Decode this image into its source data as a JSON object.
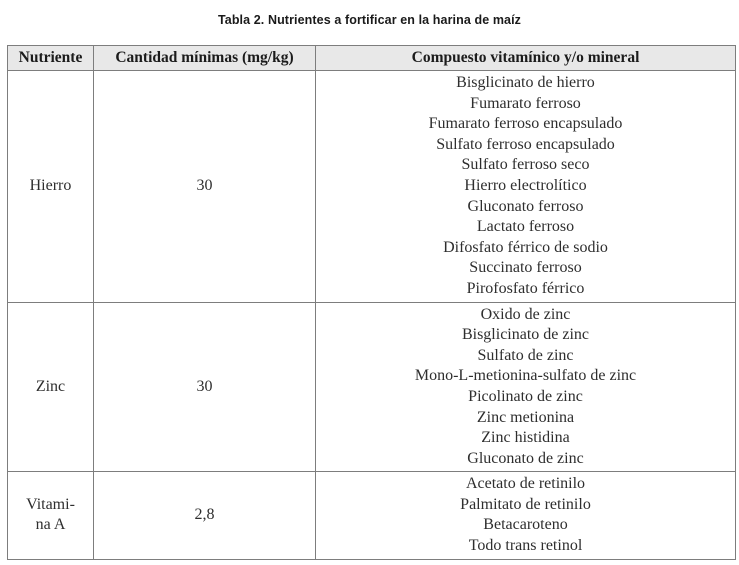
{
  "title": "Tabla 2. Nutrientes a fortificar en la harina de maíz",
  "colors": {
    "header_bg": "#e8e8e8",
    "border": "#7d7d7d",
    "text": "#2e2e2e"
  },
  "table": {
    "headers": [
      "Nutriente",
      "Cantidad mínimas (mg/kg)",
      "Compuesto vitamínico y/o mineral"
    ],
    "rows": [
      {
        "nutrient_lines": [
          "Hierro"
        ],
        "amount": "30",
        "compounds": [
          "Bisglicinato de hierro",
          "Fumarato ferroso",
          "Fumarato ferroso encapsulado",
          "Sulfato ferroso encapsulado",
          "Sulfato ferroso seco",
          "Hierro electrolítico",
          "Gluconato ferroso",
          "Lactato ferroso",
          "Difosfato férrico de sodio",
          "Succinato ferroso",
          "Pirofosfato férrico"
        ]
      },
      {
        "nutrient_lines": [
          "Zinc"
        ],
        "amount": "30",
        "compounds": [
          "Oxido de zinc",
          "Bisglicinato de zinc",
          "Sulfato de zinc",
          "Mono-L-metionina-sulfato de zinc",
          "Picolinato de zinc",
          "Zinc metionina",
          "Zinc histidina",
          "Gluconato de zinc"
        ]
      },
      {
        "nutrient_lines": [
          "Vitami-",
          "na A"
        ],
        "amount": "2,8",
        "compounds": [
          "Acetato de retinilo",
          "Palmitato de retinilo",
          "Betacaroteno",
          "Todo trans retinol"
        ]
      }
    ]
  }
}
